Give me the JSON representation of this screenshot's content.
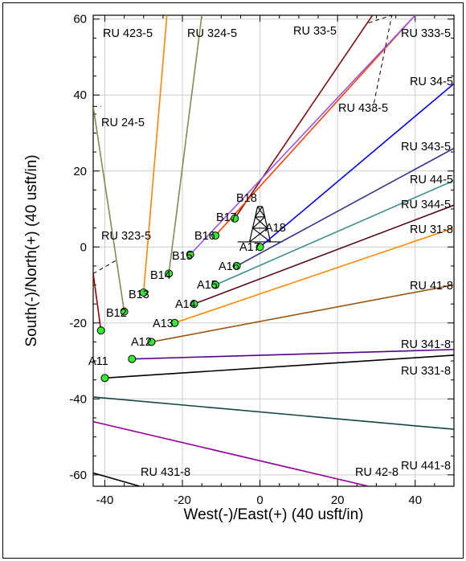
{
  "chart_data": {
    "type": "line",
    "title": "",
    "xlabel": "West(-)/East(+) (40 usft/in)",
    "ylabel": "South(-)/North(+) (40 usft/in)",
    "xlim": [
      -43,
      50
    ],
    "ylim": [
      -63,
      61
    ],
    "xticks": [
      -40,
      -20,
      0,
      20,
      40
    ],
    "yticks": [
      -60,
      -40,
      -20,
      0,
      20,
      40,
      60
    ],
    "grid": true,
    "tower": {
      "x": 0,
      "y": 6
    },
    "wells": [
      {
        "label": "RU 423-5",
        "x": [
          -30,
          -24
        ],
        "y": [
          -12,
          61
        ],
        "color": "#ff8800",
        "mark": true
      },
      {
        "label": "RU 324-5",
        "x": [
          -23.5,
          -15
        ],
        "y": [
          -7,
          61
        ],
        "color": "#888855",
        "mark": true
      },
      {
        "label": "RU 33-5",
        "x": [
          -6.5,
          29
        ],
        "y": [
          7.5,
          61
        ],
        "color": "#7b1010",
        "mark": true
      },
      {
        "label": "RU 333-5",
        "x": [
          -11.5,
          40
        ],
        "y": [
          3,
          61
        ],
        "color": "#ff4400",
        "mark": true
      },
      {
        "label": "RU 433-5",
        "x": [
          -18,
          40
        ],
        "y": [
          -2,
          61
        ],
        "color": "#9955ee",
        "mark": true
      },
      {
        "label": "RU 34-5",
        "x": [
          0,
          50
        ],
        "y": [
          0,
          43
        ],
        "color": "#0000ee",
        "mark": true
      },
      {
        "label": "RU 24-5",
        "x": [
          -35,
          -43
        ],
        "y": [
          -17,
          37
        ],
        "color": "#888855",
        "mark": true
      },
      {
        "label": "RU 343-5",
        "x": [
          -6,
          50
        ],
        "y": [
          -5,
          26
        ],
        "color": "#333388",
        "mark": true
      },
      {
        "label": "RU 44-5",
        "x": [
          -11.5,
          50
        ],
        "y": [
          -10,
          17.5
        ],
        "color": "#3f8f8f",
        "mark": true
      },
      {
        "label": "RU 344-5",
        "x": [
          -17,
          50
        ],
        "y": [
          -15,
          11
        ],
        "color": "#550011",
        "mark": true
      },
      {
        "label": "RU 31-8",
        "x": [
          -22,
          50
        ],
        "y": [
          -20,
          5
        ],
        "color": "#ff8800",
        "mark": true
      },
      {
        "label": "RU 41-8",
        "x": [
          -28,
          50
        ],
        "y": [
          -25,
          -10
        ],
        "color": "#995511",
        "mark": true
      },
      {
        "label": "RU 341-8",
        "x": [
          -33,
          50
        ],
        "y": [
          -29.5,
          -27
        ],
        "color": "#550088",
        "mark": true
      },
      {
        "label": "RU 331-8",
        "x": [
          -40,
          50
        ],
        "y": [
          -34.5,
          -28.5
        ],
        "color": "#000000",
        "mark": true
      },
      {
        "label": "RU 323-5",
        "x": [
          -41,
          -43
        ],
        "y": [
          -22,
          -7
        ],
        "color": "#990000",
        "mark": true
      },
      {
        "label": "RU 441-8",
        "x": [
          -43,
          50
        ],
        "y": [
          -39.5,
          -48
        ],
        "color": "#114444",
        "mark": false
      },
      {
        "label": "RU 42-8",
        "x": [
          -43,
          28
        ],
        "y": [
          -46,
          -63
        ],
        "color": "#990099",
        "mark": false
      },
      {
        "label": "RU 431-8",
        "x": [
          -43,
          -31
        ],
        "y": [
          -59.5,
          -63
        ],
        "color": "#000000",
        "mark": false
      }
    ],
    "point_labels": [
      "B18",
      "B17",
      "B16",
      "B15",
      "B14",
      "B13",
      "B12",
      "A18",
      "A17",
      "A16",
      "A15",
      "A14",
      "A13",
      "A12",
      "A11"
    ]
  }
}
